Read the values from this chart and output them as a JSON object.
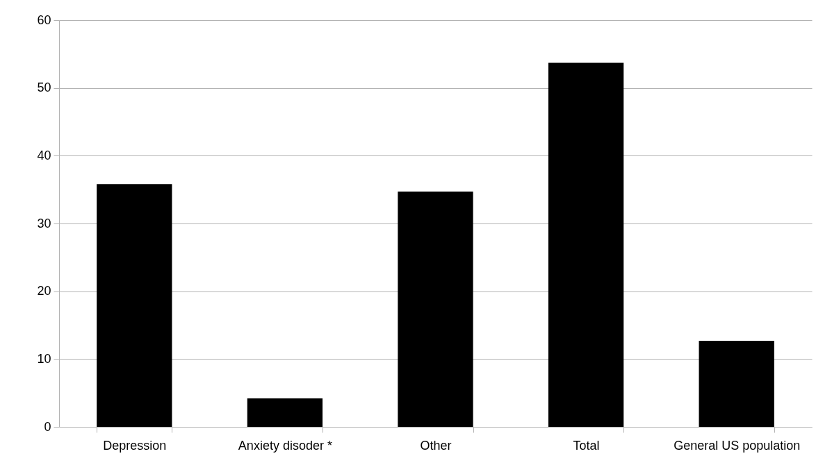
{
  "chart_data": {
    "type": "bar",
    "categories": [
      "Depression",
      "Anxiety disoder *",
      "Other",
      "Total",
      "General US population"
    ],
    "values": [
      35.8,
      4.2,
      34.7,
      53.7,
      12.7
    ],
    "color": "#000000",
    "ylim": [
      0,
      60
    ],
    "yticks": [
      0,
      10,
      20,
      30,
      40,
      50,
      60
    ],
    "grid": "y"
  }
}
